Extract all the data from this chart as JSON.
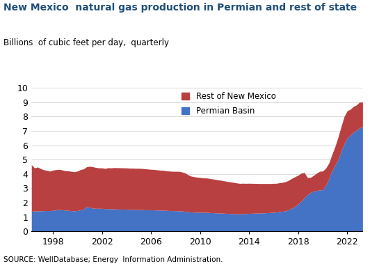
{
  "title": "New Mexico  natural gas production in Permian and rest of state",
  "subtitle": "Billions  of cubic feet per day,  quarterly",
  "source": "SOURCE: WellDatabase; Energy  Information Administration.",
  "title_color": "#1F4E79",
  "subtitle_color": "#000000",
  "permian_color": "#4472C4",
  "rest_color": "#B94040",
  "ylim": [
    0,
    10
  ],
  "yticks": [
    0,
    1,
    2,
    3,
    4,
    5,
    6,
    7,
    8,
    9,
    10
  ],
  "xtick_years": [
    1998,
    2002,
    2006,
    2010,
    2014,
    2018,
    2022
  ],
  "legend_labels": [
    "Rest of New Mexico",
    "Permian Basin"
  ],
  "years_quarterly": [
    1996.25,
    1996.5,
    1996.75,
    1997.0,
    1997.25,
    1997.5,
    1997.75,
    1998.0,
    1998.25,
    1998.5,
    1998.75,
    1999.0,
    1999.25,
    1999.5,
    1999.75,
    2000.0,
    2000.25,
    2000.5,
    2000.75,
    2001.0,
    2001.25,
    2001.5,
    2001.75,
    2002.0,
    2002.25,
    2002.5,
    2002.75,
    2003.0,
    2003.25,
    2003.5,
    2003.75,
    2004.0,
    2004.25,
    2004.5,
    2004.75,
    2005.0,
    2005.25,
    2005.5,
    2005.75,
    2006.0,
    2006.25,
    2006.5,
    2006.75,
    2007.0,
    2007.25,
    2007.5,
    2007.75,
    2008.0,
    2008.25,
    2008.5,
    2008.75,
    2009.0,
    2009.25,
    2009.5,
    2009.75,
    2010.0,
    2010.25,
    2010.5,
    2010.75,
    2011.0,
    2011.25,
    2011.5,
    2011.75,
    2012.0,
    2012.25,
    2012.5,
    2012.75,
    2013.0,
    2013.25,
    2013.5,
    2013.75,
    2014.0,
    2014.25,
    2014.5,
    2014.75,
    2015.0,
    2015.25,
    2015.5,
    2015.75,
    2016.0,
    2016.25,
    2016.5,
    2016.75,
    2017.0,
    2017.25,
    2017.5,
    2017.75,
    2018.0,
    2018.25,
    2018.5,
    2018.75,
    2019.0,
    2019.25,
    2019.5,
    2019.75,
    2020.0,
    2020.25,
    2020.5,
    2020.75,
    2021.0,
    2021.25,
    2021.5,
    2021.75,
    2022.0,
    2022.25,
    2022.5,
    2022.75,
    2023.0,
    2023.25
  ],
  "permian": [
    1.4,
    1.42,
    1.43,
    1.42,
    1.44,
    1.45,
    1.44,
    1.46,
    1.5,
    1.52,
    1.5,
    1.48,
    1.46,
    1.44,
    1.43,
    1.45,
    1.5,
    1.55,
    1.72,
    1.68,
    1.62,
    1.6,
    1.6,
    1.6,
    1.58,
    1.58,
    1.57,
    1.56,
    1.55,
    1.55,
    1.54,
    1.54,
    1.53,
    1.52,
    1.52,
    1.52,
    1.51,
    1.5,
    1.5,
    1.5,
    1.49,
    1.48,
    1.48,
    1.47,
    1.46,
    1.45,
    1.44,
    1.44,
    1.43,
    1.42,
    1.4,
    1.37,
    1.35,
    1.34,
    1.33,
    1.33,
    1.32,
    1.32,
    1.31,
    1.3,
    1.29,
    1.28,
    1.27,
    1.26,
    1.25,
    1.24,
    1.23,
    1.22,
    1.22,
    1.23,
    1.24,
    1.25,
    1.26,
    1.27,
    1.27,
    1.28,
    1.29,
    1.3,
    1.31,
    1.33,
    1.35,
    1.38,
    1.4,
    1.44,
    1.52,
    1.62,
    1.75,
    1.9,
    2.1,
    2.35,
    2.55,
    2.7,
    2.8,
    2.85,
    2.88,
    2.9,
    3.2,
    3.65,
    4.2,
    4.6,
    5.0,
    5.55,
    6.1,
    6.5,
    6.7,
    6.9,
    7.05,
    7.2,
    7.3
  ],
  "rest_of_nm": [
    3.25,
    3.0,
    3.05,
    2.95,
    2.85,
    2.8,
    2.75,
    2.8,
    2.8,
    2.8,
    2.78,
    2.74,
    2.75,
    2.74,
    2.72,
    2.75,
    2.8,
    2.8,
    2.78,
    2.85,
    2.88,
    2.85,
    2.82,
    2.82,
    2.8,
    2.85,
    2.85,
    2.88,
    2.88,
    2.88,
    2.88,
    2.88,
    2.87,
    2.88,
    2.87,
    2.87,
    2.87,
    2.86,
    2.84,
    2.82,
    2.82,
    2.8,
    2.78,
    2.78,
    2.75,
    2.75,
    2.74,
    2.74,
    2.75,
    2.72,
    2.68,
    2.58,
    2.5,
    2.47,
    2.44,
    2.42,
    2.4,
    2.4,
    2.38,
    2.35,
    2.33,
    2.3,
    2.28,
    2.25,
    2.22,
    2.2,
    2.18,
    2.15,
    2.12,
    2.12,
    2.1,
    2.1,
    2.08,
    2.07,
    2.06,
    2.05,
    2.04,
    2.03,
    2.02,
    2.01,
    2.0,
    2.01,
    2.02,
    2.03,
    2.05,
    2.08,
    2.06,
    2.02,
    1.95,
    1.75,
    1.2,
    1.05,
    1.1,
    1.2,
    1.3,
    1.3,
    1.2,
    1.1,
    1.15,
    1.3,
    1.55,
    1.75,
    1.9,
    1.9,
    1.8,
    1.8,
    1.75,
    1.8,
    1.7
  ]
}
